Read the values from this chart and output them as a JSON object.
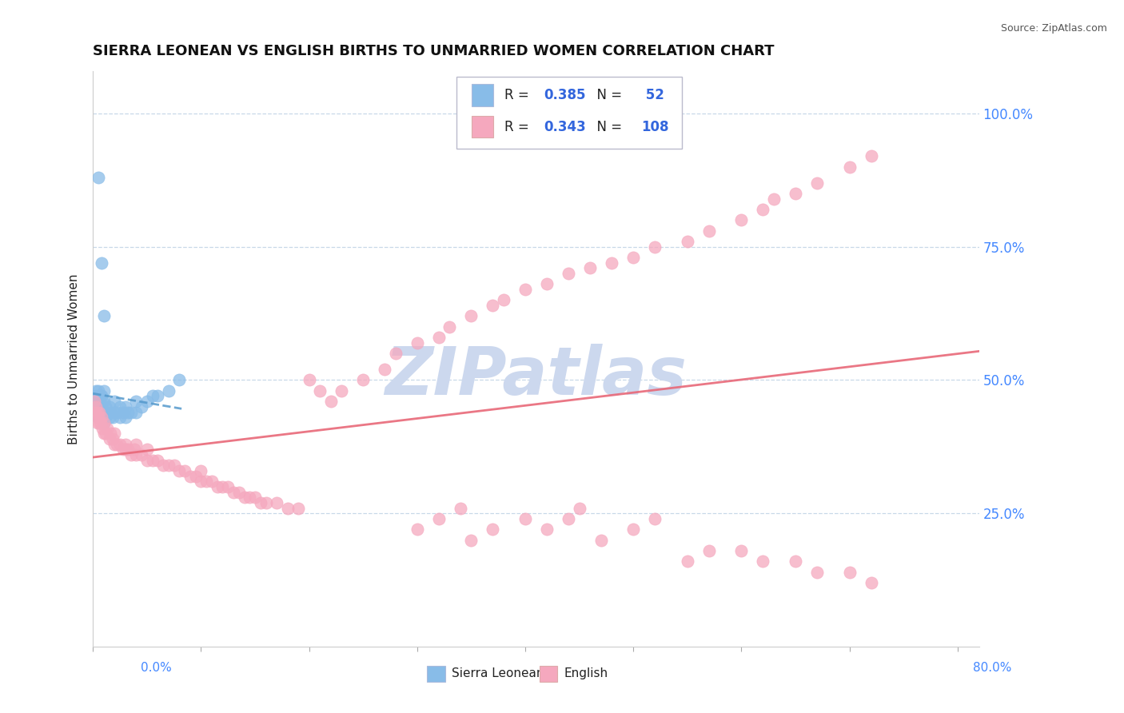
{
  "title": "SIERRA LEONEAN VS ENGLISH BIRTHS TO UNMARRIED WOMEN CORRELATION CHART",
  "source": "Source: ZipAtlas.com",
  "ylabel": "Births to Unmarried Women",
  "xlim": [
    0.0,
    0.82
  ],
  "ylim": [
    0.0,
    1.08
  ],
  "sierra_R": "0.385",
  "sierra_N": "52",
  "english_R": "0.343",
  "english_N": "108",
  "blue_color": "#88bce8",
  "pink_color": "#f5a8be",
  "blue_line_color": "#5599cc",
  "pink_line_color": "#e86878",
  "watermark": "ZIPatlas",
  "watermark_color": "#ccd8ee",
  "legend_value_color": "#3366dd",
  "grid_color": "#c8d8e8",
  "ytick_values": [
    0.25,
    0.5,
    0.75,
    1.0
  ],
  "ytick_labels": [
    "25.0%",
    "50.0%",
    "75.0%",
    "100.0%"
  ],
  "xtick_label_left": "0.0%",
  "xtick_label_right": "80.0%",
  "bottom_legend": [
    "Sierra Leoneans",
    "English"
  ],
  "sierra_x": [
    0.002,
    0.002,
    0.003,
    0.003,
    0.003,
    0.004,
    0.004,
    0.004,
    0.005,
    0.005,
    0.005,
    0.006,
    0.006,
    0.007,
    0.007,
    0.008,
    0.008,
    0.008,
    0.009,
    0.009,
    0.01,
    0.01,
    0.01,
    0.01,
    0.012,
    0.012,
    0.013,
    0.015,
    0.015,
    0.016,
    0.018,
    0.02,
    0.02,
    0.022,
    0.025,
    0.025,
    0.028,
    0.03,
    0.03,
    0.032,
    0.035,
    0.04,
    0.04,
    0.045,
    0.05,
    0.055,
    0.06,
    0.07,
    0.08,
    0.005,
    0.008,
    0.01
  ],
  "sierra_y": [
    0.46,
    0.47,
    0.45,
    0.46,
    0.48,
    0.44,
    0.45,
    0.47,
    0.43,
    0.46,
    0.48,
    0.44,
    0.46,
    0.43,
    0.47,
    0.44,
    0.45,
    0.47,
    0.44,
    0.46,
    0.42,
    0.44,
    0.46,
    0.48,
    0.43,
    0.45,
    0.44,
    0.43,
    0.45,
    0.44,
    0.43,
    0.44,
    0.46,
    0.44,
    0.43,
    0.45,
    0.44,
    0.43,
    0.45,
    0.44,
    0.44,
    0.44,
    0.46,
    0.45,
    0.46,
    0.47,
    0.47,
    0.48,
    0.5,
    0.88,
    0.72,
    0.62
  ],
  "english_x": [
    0.001,
    0.002,
    0.003,
    0.004,
    0.004,
    0.005,
    0.006,
    0.006,
    0.007,
    0.008,
    0.009,
    0.01,
    0.01,
    0.012,
    0.013,
    0.015,
    0.016,
    0.018,
    0.02,
    0.02,
    0.022,
    0.025,
    0.028,
    0.03,
    0.03,
    0.032,
    0.035,
    0.038,
    0.04,
    0.04,
    0.045,
    0.05,
    0.05,
    0.055,
    0.06,
    0.065,
    0.07,
    0.075,
    0.08,
    0.085,
    0.09,
    0.095,
    0.1,
    0.1,
    0.105,
    0.11,
    0.115,
    0.12,
    0.125,
    0.13,
    0.135,
    0.14,
    0.145,
    0.15,
    0.155,
    0.16,
    0.17,
    0.18,
    0.19,
    0.2,
    0.21,
    0.22,
    0.23,
    0.25,
    0.27,
    0.28,
    0.3,
    0.32,
    0.33,
    0.35,
    0.37,
    0.38,
    0.4,
    0.42,
    0.44,
    0.46,
    0.48,
    0.5,
    0.52,
    0.55,
    0.57,
    0.6,
    0.62,
    0.63,
    0.65,
    0.67,
    0.7,
    0.72,
    0.3,
    0.32,
    0.34,
    0.35,
    0.37,
    0.4,
    0.42,
    0.44,
    0.45,
    0.47,
    0.5,
    0.52,
    0.55,
    0.57,
    0.6,
    0.62,
    0.65,
    0.67,
    0.7,
    0.72
  ],
  "english_y": [
    0.46,
    0.44,
    0.45,
    0.42,
    0.44,
    0.43,
    0.42,
    0.44,
    0.42,
    0.43,
    0.41,
    0.4,
    0.42,
    0.4,
    0.41,
    0.39,
    0.4,
    0.39,
    0.38,
    0.4,
    0.38,
    0.38,
    0.37,
    0.37,
    0.38,
    0.37,
    0.36,
    0.37,
    0.36,
    0.38,
    0.36,
    0.35,
    0.37,
    0.35,
    0.35,
    0.34,
    0.34,
    0.34,
    0.33,
    0.33,
    0.32,
    0.32,
    0.31,
    0.33,
    0.31,
    0.31,
    0.3,
    0.3,
    0.3,
    0.29,
    0.29,
    0.28,
    0.28,
    0.28,
    0.27,
    0.27,
    0.27,
    0.26,
    0.26,
    0.5,
    0.48,
    0.46,
    0.48,
    0.5,
    0.52,
    0.55,
    0.57,
    0.58,
    0.6,
    0.62,
    0.64,
    0.65,
    0.67,
    0.68,
    0.7,
    0.71,
    0.72,
    0.73,
    0.75,
    0.76,
    0.78,
    0.8,
    0.82,
    0.84,
    0.85,
    0.87,
    0.9,
    0.92,
    0.22,
    0.24,
    0.26,
    0.2,
    0.22,
    0.24,
    0.22,
    0.24,
    0.26,
    0.2,
    0.22,
    0.24,
    0.16,
    0.18,
    0.18,
    0.16,
    0.16,
    0.14,
    0.14,
    0.12
  ]
}
